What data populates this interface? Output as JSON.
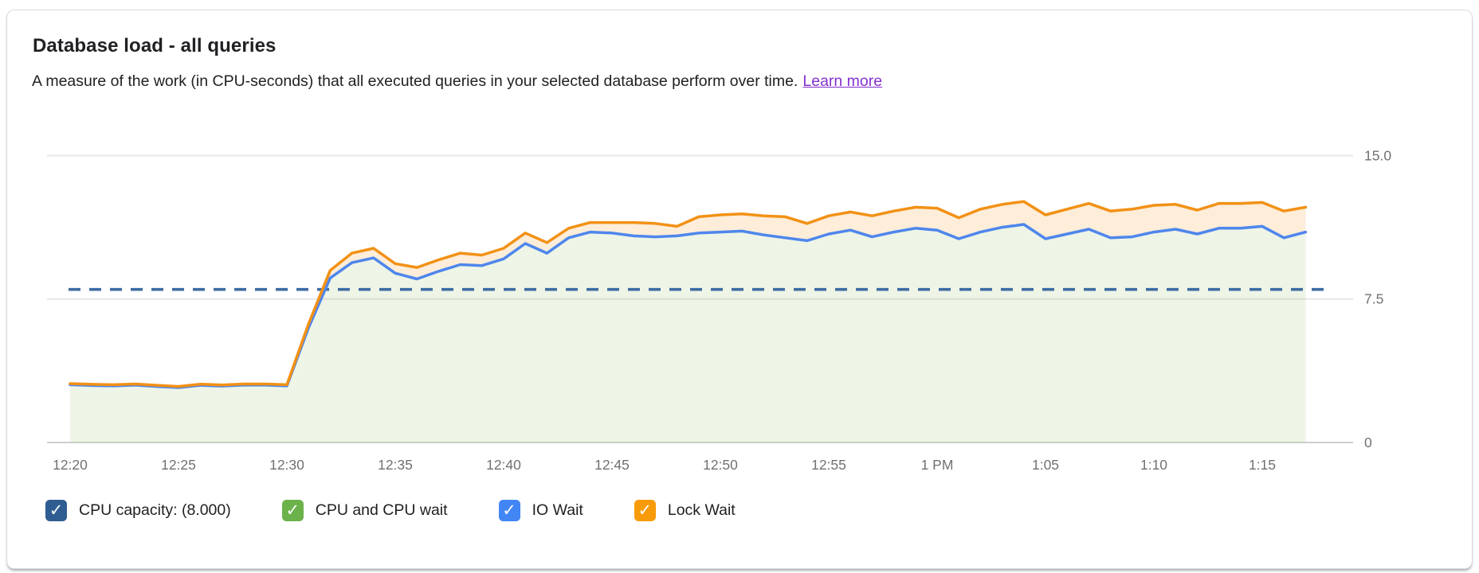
{
  "card": {
    "title": "Database load - all queries",
    "subtitle": "A measure of the work (in CPU-seconds) that all executed queries in your selected database perform over time.",
    "learn_more_label": "Learn more"
  },
  "legend": [
    {
      "label": "CPU capacity: (8.000)",
      "color": "#2f5d92",
      "checked": true
    },
    {
      "label": "CPU and CPU wait",
      "color": "#6cb24a",
      "checked": true
    },
    {
      "label": "IO Wait",
      "color": "#4285f4",
      "checked": true
    },
    {
      "label": "Lock Wait",
      "color": "#f89b0b",
      "checked": true
    }
  ],
  "colors": {
    "io_wait_line": "#4e86ec",
    "lock_wait_line": "#f29115",
    "cpu_area_fill": "rgba(125,179,67,0.13)",
    "lock_band_fill": "rgba(242,145,21,0.16)",
    "capacity_dash": "#3e6ca3",
    "gridline": "#e7e7e7",
    "axis_line": "#cfcfcf",
    "axis_label": "#717171",
    "link": "#8430ce"
  },
  "chart_data": {
    "type": "area",
    "title": "Database load - all queries",
    "ylabel": "",
    "xlabel": "",
    "ylim": [
      0,
      15
    ],
    "yticks": [
      0,
      7.5,
      15
    ],
    "ytick_labels": [
      "0",
      "7.5",
      "15.0"
    ],
    "grid": "horizontal",
    "legend_position": "bottom",
    "x_start_time": "12:20 PM",
    "x_unit": "minutes since 12:20 PM, one sample per minute",
    "x_tick_minutes": [
      0,
      5,
      10,
      15,
      20,
      25,
      30,
      35,
      40,
      45,
      50,
      55
    ],
    "x_tick_labels": [
      "12:20",
      "12:25",
      "12:30",
      "12:35",
      "12:40",
      "12:45",
      "12:50",
      "12:55",
      "1 PM",
      "1:05",
      "1:10",
      "1:15"
    ],
    "capacity_line": {
      "name": "CPU capacity",
      "value": 8.0,
      "style": "dashed"
    },
    "x_minutes": [
      0,
      1,
      2,
      3,
      4,
      5,
      6,
      7,
      8,
      9,
      10,
      11,
      12,
      13,
      14,
      15,
      16,
      17,
      18,
      19,
      20,
      21,
      22,
      23,
      24,
      25,
      26,
      27,
      28,
      29,
      30,
      31,
      32,
      33,
      34,
      35,
      36,
      37,
      38,
      39,
      40,
      41,
      42,
      43,
      44,
      45,
      46,
      47,
      48,
      49,
      50,
      51,
      52,
      53,
      54,
      55,
      56,
      57
    ],
    "series": [
      {
        "name": "IO Wait (blue line = stacked top of CPU/CPU-wait + IO wait; green fill below)",
        "values": [
          3.02,
          2.98,
          2.96,
          3.0,
          2.93,
          2.87,
          2.99,
          2.95,
          3.0,
          3.0,
          2.96,
          6.0,
          8.6,
          9.4,
          9.65,
          8.85,
          8.55,
          8.95,
          9.3,
          9.25,
          9.6,
          10.4,
          9.9,
          10.7,
          11.0,
          10.95,
          10.8,
          10.75,
          10.8,
          10.95,
          11.0,
          11.05,
          10.85,
          10.7,
          10.55,
          10.9,
          11.1,
          10.75,
          11.0,
          11.2,
          11.1,
          10.65,
          11.0,
          11.25,
          11.4,
          10.65,
          10.9,
          11.15,
          10.7,
          10.75,
          11.0,
          11.15,
          10.9,
          11.2,
          11.2,
          11.3,
          10.7,
          11.0
        ]
      },
      {
        "name": "Lock Wait (orange line = stacked total incl. lock wait; peach band above blue)",
        "values": [
          3.08,
          3.04,
          3.02,
          3.06,
          2.99,
          2.93,
          3.05,
          3.01,
          3.06,
          3.06,
          3.02,
          6.2,
          9.0,
          9.9,
          10.15,
          9.35,
          9.15,
          9.55,
          9.9,
          9.8,
          10.15,
          10.95,
          10.45,
          11.2,
          11.5,
          11.5,
          11.5,
          11.45,
          11.3,
          11.8,
          11.9,
          11.95,
          11.85,
          11.8,
          11.45,
          11.85,
          12.05,
          11.85,
          12.1,
          12.3,
          12.25,
          11.75,
          12.2,
          12.45,
          12.6,
          11.9,
          12.2,
          12.5,
          12.1,
          12.2,
          12.4,
          12.45,
          12.15,
          12.5,
          12.5,
          12.55,
          12.1,
          12.3
        ]
      }
    ]
  }
}
